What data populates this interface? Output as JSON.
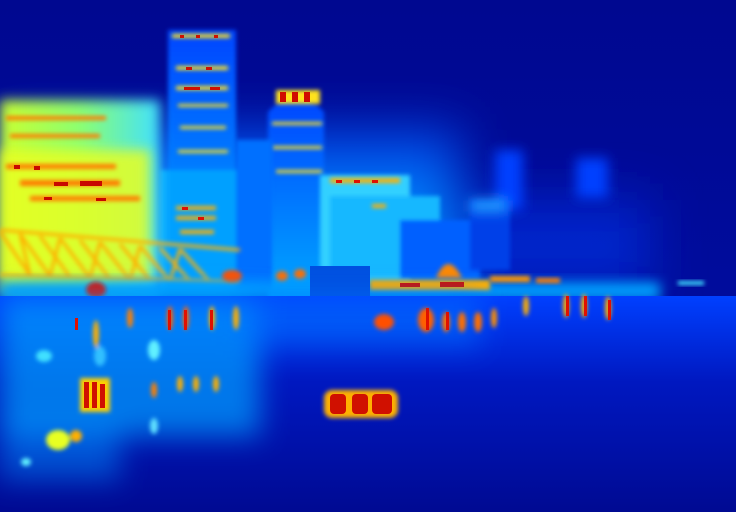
{
  "palette": {
    "deep": "#00088f",
    "blue": "#0033ff",
    "mid": "#0070ff",
    "cyan": "#20d8ff",
    "green": "#7dff80",
    "yellow": "#f5ff1a",
    "orange": "#ff8a00",
    "red": "#e01000",
    "dark": "#7a0000"
  },
  "colormap": "jet"
}
